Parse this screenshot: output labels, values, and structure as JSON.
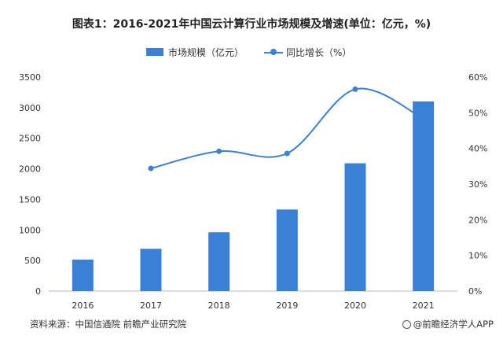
{
  "title": "图表1：2016-2021年中国云计算行业市场规模及增速(单位：亿元，%)",
  "source": "资料来源：中国信通院 前瞻产业研究院",
  "credit": "@前瞻经济学人APP",
  "colors": {
    "bar": "#3a80d6",
    "line": "#3a80d6",
    "axis": "#bfbfbf",
    "text": "#333333"
  },
  "chart_data": {
    "type": "bar",
    "categories": [
      "2016",
      "2017",
      "2018",
      "2019",
      "2020",
      "2021"
    ],
    "series": [
      {
        "name": "市场规模（亿元）",
        "type": "bar",
        "axis": "left",
        "values": [
          515,
          692,
          962,
          1334,
          2091,
          3102
        ]
      },
      {
        "name": "同比增长（%）",
        "type": "line",
        "axis": "right",
        "smooth": true,
        "values": [
          null,
          34.4,
          39.2,
          38.6,
          56.6,
          48.4
        ]
      }
    ],
    "y_left": {
      "min": 0,
      "max": 3500,
      "step": 500,
      "ticks": [
        "0",
        "500",
        "1000",
        "1500",
        "2000",
        "2500",
        "3000",
        "3500"
      ]
    },
    "y_right": {
      "min": 0,
      "max": 60,
      "step": 10,
      "ticks": [
        "0%",
        "10%",
        "20%",
        "30%",
        "40%",
        "50%",
        "60%"
      ]
    },
    "grid": false,
    "legend_position": "top-center"
  }
}
